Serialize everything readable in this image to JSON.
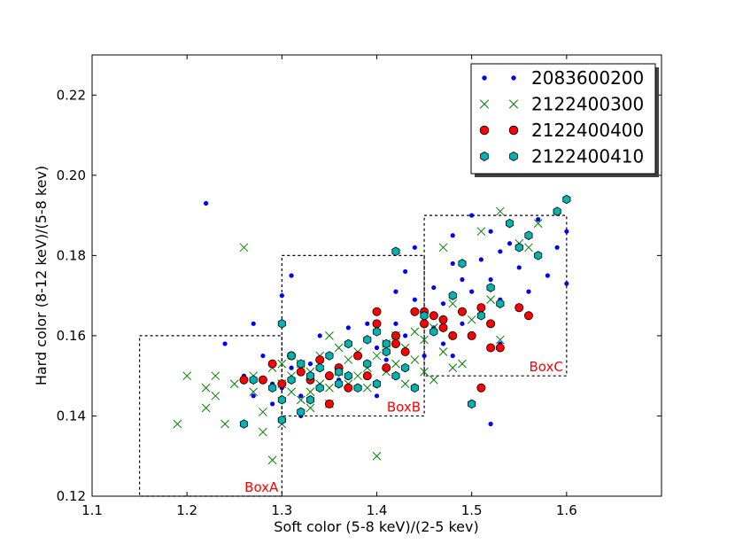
{
  "chart_data": {
    "type": "scatter",
    "title": "",
    "xlabel": "Soft color (5-8 keV)/(2-5 kev)",
    "ylabel": "Hard color (8-12 keV)/(5-8 kev)",
    "xlim": [
      1.1,
      1.7
    ],
    "ylim": [
      0.12,
      0.23
    ],
    "xticks": [
      "1.1",
      "1.2",
      "1.3",
      "1.4",
      "1.5",
      "1.6"
    ],
    "xtick_values": [
      1.1,
      1.2,
      1.3,
      1.4,
      1.5,
      1.6
    ],
    "yticks": [
      "0.12",
      "0.14",
      "0.16",
      "0.18",
      "0.20",
      "0.22"
    ],
    "ytick_values": [
      0.12,
      0.14,
      0.16,
      0.18,
      0.2,
      0.22
    ],
    "legend_position": "top-right",
    "boxes": [
      {
        "label": "BoxA",
        "x": [
          1.15,
          1.3
        ],
        "y": [
          0.12,
          0.16
        ]
      },
      {
        "label": "BoxB",
        "x": [
          1.3,
          1.45
        ],
        "y": [
          0.14,
          0.18
        ]
      },
      {
        "label": "BoxC",
        "x": [
          1.45,
          1.6
        ],
        "y": [
          0.15,
          0.19
        ]
      }
    ],
    "series": [
      {
        "name": "2083600200",
        "marker": "dot",
        "color": "#0000ff",
        "points": [
          [
            1.22,
            0.193
          ],
          [
            1.24,
            0.158
          ],
          [
            1.26,
            0.15
          ],
          [
            1.27,
            0.163
          ],
          [
            1.28,
            0.155
          ],
          [
            1.29,
            0.148
          ],
          [
            1.29,
            0.143
          ],
          [
            1.3,
            0.17
          ],
          [
            1.3,
            0.147
          ],
          [
            1.31,
            0.152
          ],
          [
            1.31,
            0.175
          ],
          [
            1.32,
            0.145
          ],
          [
            1.32,
            0.14
          ],
          [
            1.33,
            0.153
          ],
          [
            1.33,
            0.15
          ],
          [
            1.34,
            0.16
          ],
          [
            1.34,
            0.147
          ],
          [
            1.35,
            0.155
          ],
          [
            1.36,
            0.149
          ],
          [
            1.37,
            0.158
          ],
          [
            1.37,
            0.162
          ],
          [
            1.38,
            0.155
          ],
          [
            1.38,
            0.147
          ],
          [
            1.39,
            0.163
          ],
          [
            1.39,
            0.15
          ],
          [
            1.4,
            0.166
          ],
          [
            1.4,
            0.157
          ],
          [
            1.4,
            0.145
          ],
          [
            1.41,
            0.154
          ],
          [
            1.42,
            0.171
          ],
          [
            1.42,
            0.163
          ],
          [
            1.43,
            0.176
          ],
          [
            1.43,
            0.16
          ],
          [
            1.44,
            0.182
          ],
          [
            1.44,
            0.169
          ],
          [
            1.45,
            0.164
          ],
          [
            1.45,
            0.155
          ],
          [
            1.46,
            0.172
          ],
          [
            1.47,
            0.168
          ],
          [
            1.47,
            0.158
          ],
          [
            1.48,
            0.178
          ],
          [
            1.48,
            0.185
          ],
          [
            1.49,
            0.174
          ],
          [
            1.49,
            0.163
          ],
          [
            1.5,
            0.19
          ],
          [
            1.5,
            0.171
          ],
          [
            1.51,
            0.179
          ],
          [
            1.51,
            0.166
          ],
          [
            1.52,
            0.186
          ],
          [
            1.52,
            0.174
          ],
          [
            1.53,
            0.181
          ],
          [
            1.53,
            0.169
          ],
          [
            1.54,
            0.183
          ],
          [
            1.55,
            0.177
          ],
          [
            1.56,
            0.171
          ],
          [
            1.57,
            0.189
          ],
          [
            1.57,
            0.18
          ],
          [
            1.58,
            0.175
          ],
          [
            1.59,
            0.182
          ],
          [
            1.6,
            0.186
          ],
          [
            1.6,
            0.173
          ],
          [
            1.52,
            0.138
          ],
          [
            1.48,
            0.155
          ],
          [
            1.46,
            0.162
          ],
          [
            1.53,
            0.158
          ],
          [
            1.27,
            0.145
          ]
        ]
      },
      {
        "name": "2122400300",
        "marker": "x",
        "color": "#008000",
        "points": [
          [
            1.19,
            0.138
          ],
          [
            1.2,
            0.15
          ],
          [
            1.22,
            0.147
          ],
          [
            1.22,
            0.142
          ],
          [
            1.23,
            0.15
          ],
          [
            1.23,
            0.145
          ],
          [
            1.24,
            0.138
          ],
          [
            1.25,
            0.148
          ],
          [
            1.26,
            0.182
          ],
          [
            1.27,
            0.146
          ],
          [
            1.27,
            0.15
          ],
          [
            1.28,
            0.141
          ],
          [
            1.28,
            0.136
          ],
          [
            1.29,
            0.152
          ],
          [
            1.29,
            0.129
          ],
          [
            1.3,
            0.148
          ],
          [
            1.3,
            0.153
          ],
          [
            1.31,
            0.146
          ],
          [
            1.31,
            0.15
          ],
          [
            1.32,
            0.144
          ],
          [
            1.32,
            0.153
          ],
          [
            1.33,
            0.151
          ],
          [
            1.33,
            0.146
          ],
          [
            1.34,
            0.148
          ],
          [
            1.34,
            0.155
          ],
          [
            1.35,
            0.143
          ],
          [
            1.35,
            0.147
          ],
          [
            1.36,
            0.151
          ],
          [
            1.36,
            0.157
          ],
          [
            1.37,
            0.148
          ],
          [
            1.37,
            0.154
          ],
          [
            1.38,
            0.15
          ],
          [
            1.38,
            0.156
          ],
          [
            1.39,
            0.147
          ],
          [
            1.39,
            0.152
          ],
          [
            1.4,
            0.155
          ],
          [
            1.4,
            0.13
          ],
          [
            1.41,
            0.158
          ],
          [
            1.41,
            0.151
          ],
          [
            1.42,
            0.153
          ],
          [
            1.42,
            0.16
          ],
          [
            1.43,
            0.148
          ],
          [
            1.43,
            0.157
          ],
          [
            1.44,
            0.161
          ],
          [
            1.44,
            0.154
          ],
          [
            1.45,
            0.151
          ],
          [
            1.45,
            0.159
          ],
          [
            1.46,
            0.162
          ],
          [
            1.46,
            0.149
          ],
          [
            1.47,
            0.156
          ],
          [
            1.47,
            0.182
          ],
          [
            1.48,
            0.152
          ],
          [
            1.48,
            0.168
          ],
          [
            1.49,
            0.153
          ],
          [
            1.5,
            0.164
          ],
          [
            1.51,
            0.186
          ],
          [
            1.52,
            0.169
          ],
          [
            1.53,
            0.191
          ],
          [
            1.53,
            0.159
          ],
          [
            1.55,
            0.183
          ],
          [
            1.56,
            0.182
          ],
          [
            1.57,
            0.188
          ],
          [
            1.33,
            0.142
          ],
          [
            1.3,
            0.138
          ],
          [
            1.35,
            0.16
          ]
        ]
      },
      {
        "name": "2122400400",
        "marker": "circle",
        "color": "#ff0000",
        "points": [
          [
            1.26,
            0.149
          ],
          [
            1.28,
            0.149
          ],
          [
            1.29,
            0.153
          ],
          [
            1.3,
            0.148
          ],
          [
            1.31,
            0.155
          ],
          [
            1.32,
            0.151
          ],
          [
            1.33,
            0.149
          ],
          [
            1.34,
            0.154
          ],
          [
            1.35,
            0.15
          ],
          [
            1.35,
            0.143
          ],
          [
            1.36,
            0.152
          ],
          [
            1.37,
            0.147
          ],
          [
            1.38,
            0.155
          ],
          [
            1.39,
            0.15
          ],
          [
            1.4,
            0.166
          ],
          [
            1.4,
            0.163
          ],
          [
            1.41,
            0.152
          ],
          [
            1.42,
            0.158
          ],
          [
            1.43,
            0.156
          ],
          [
            1.44,
            0.166
          ],
          [
            1.45,
            0.166
          ],
          [
            1.45,
            0.163
          ],
          [
            1.46,
            0.165
          ],
          [
            1.47,
            0.162
          ],
          [
            1.48,
            0.16
          ],
          [
            1.49,
            0.166
          ],
          [
            1.5,
            0.16
          ],
          [
            1.51,
            0.167
          ],
          [
            1.52,
            0.163
          ],
          [
            1.52,
            0.157
          ],
          [
            1.53,
            0.157
          ],
          [
            1.55,
            0.167
          ],
          [
            1.56,
            0.165
          ],
          [
            1.51,
            0.147
          ],
          [
            1.42,
            0.16
          ],
          [
            1.47,
            0.164
          ]
        ]
      },
      {
        "name": "2122400410",
        "marker": "hexagon",
        "color": "#00b3b3",
        "points": [
          [
            1.26,
            0.138
          ],
          [
            1.27,
            0.149
          ],
          [
            1.29,
            0.147
          ],
          [
            1.3,
            0.144
          ],
          [
            1.3,
            0.163
          ],
          [
            1.31,
            0.155
          ],
          [
            1.31,
            0.149
          ],
          [
            1.32,
            0.141
          ],
          [
            1.32,
            0.153
          ],
          [
            1.33,
            0.15
          ],
          [
            1.33,
            0.144
          ],
          [
            1.34,
            0.152
          ],
          [
            1.34,
            0.147
          ],
          [
            1.35,
            0.155
          ],
          [
            1.36,
            0.148
          ],
          [
            1.36,
            0.151
          ],
          [
            1.37,
            0.158
          ],
          [
            1.37,
            0.15
          ],
          [
            1.38,
            0.147
          ],
          [
            1.39,
            0.159
          ],
          [
            1.39,
            0.153
          ],
          [
            1.4,
            0.161
          ],
          [
            1.4,
            0.148
          ],
          [
            1.41,
            0.158
          ],
          [
            1.41,
            0.156
          ],
          [
            1.42,
            0.181
          ],
          [
            1.42,
            0.15
          ],
          [
            1.43,
            0.152
          ],
          [
            1.44,
            0.147
          ],
          [
            1.45,
            0.165
          ],
          [
            1.46,
            0.161
          ],
          [
            1.48,
            0.17
          ],
          [
            1.49,
            0.178
          ],
          [
            1.5,
            0.143
          ],
          [
            1.51,
            0.165
          ],
          [
            1.52,
            0.172
          ],
          [
            1.53,
            0.168
          ],
          [
            1.54,
            0.188
          ],
          [
            1.55,
            0.182
          ],
          [
            1.56,
            0.185
          ],
          [
            1.57,
            0.18
          ],
          [
            1.59,
            0.191
          ],
          [
            1.6,
            0.194
          ],
          [
            1.3,
            0.139
          ]
        ]
      }
    ]
  }
}
